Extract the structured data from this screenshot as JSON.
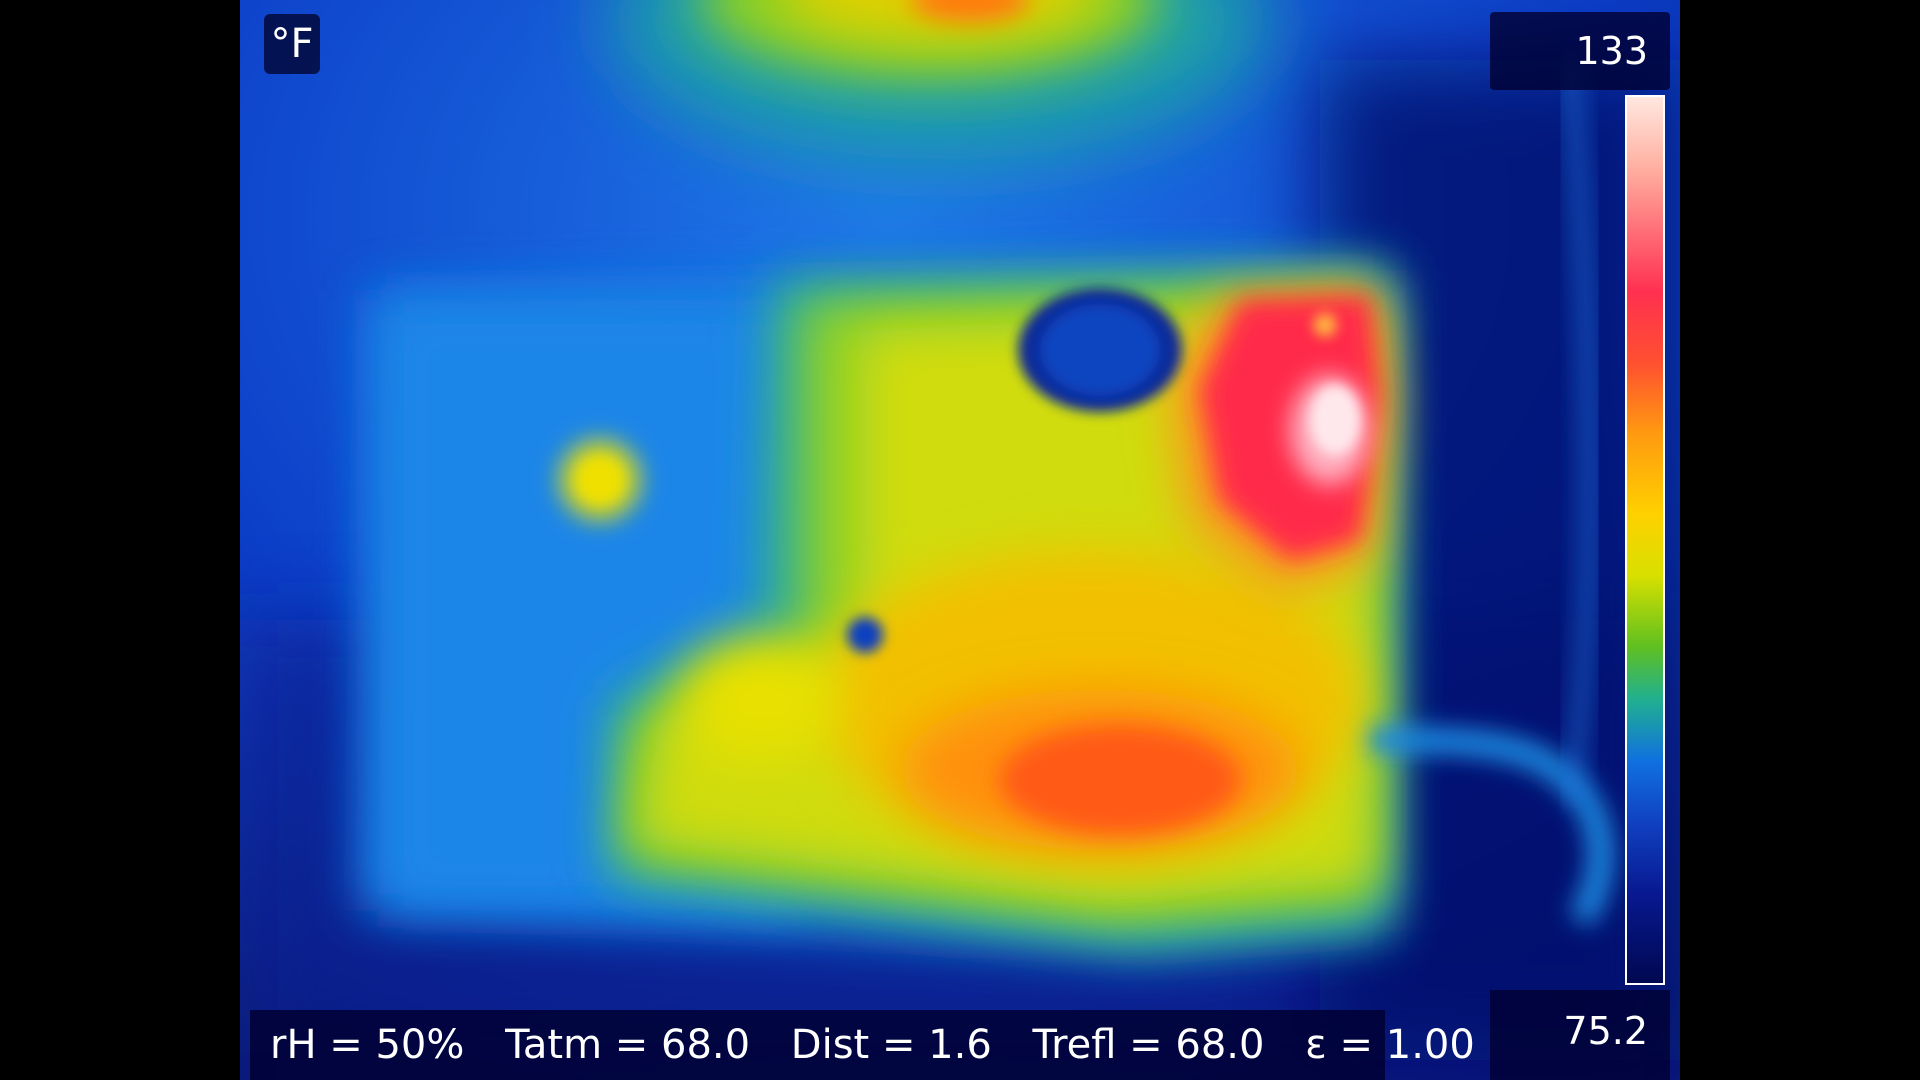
{
  "unit": "°F",
  "scale": {
    "max_label": "133",
    "min_label": "75.2"
  },
  "params": {
    "rh": "rH = 50%",
    "tatm": "Tatm = 68.0",
    "dist": "Dist = 1.6",
    "trefl": "Trefl = 68.0",
    "emissivity": "ε = 1.00"
  }
}
